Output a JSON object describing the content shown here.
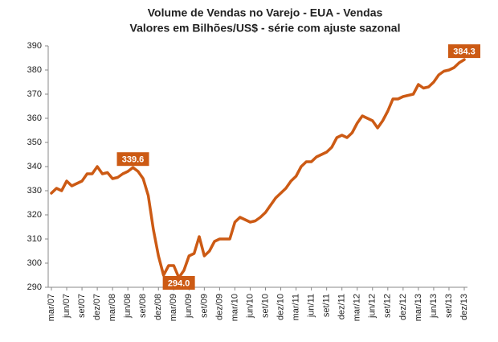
{
  "chart_data": {
    "type": "line",
    "title": "Volume de Vendas no Varejo - EUA - Vendas",
    "subtitle": "Valores em Bilhões/US$ - série com ajuste sazonal",
    "categories": [
      "mar/07",
      null,
      null,
      "jun/07",
      null,
      null,
      "set/07",
      null,
      null,
      "dez/07",
      null,
      null,
      "mar/08",
      null,
      null,
      "jun/08",
      null,
      null,
      "set/08",
      null,
      null,
      "dez/08",
      null,
      null,
      "mar/09",
      null,
      null,
      "jun/09",
      null,
      null,
      "set/09",
      null,
      null,
      "dez/09",
      null,
      null,
      "mar/10",
      null,
      null,
      "jun/10",
      null,
      null,
      "set/10",
      null,
      null,
      "dez/10",
      null,
      null,
      "mar/11",
      null,
      null,
      "jun/11",
      null,
      null,
      "set/11",
      null,
      null,
      "dez/11",
      null,
      null,
      "mar/12",
      null,
      null,
      "jun/12",
      null,
      null,
      "set/12",
      null,
      null,
      "dez/12",
      null,
      null,
      "mar/13",
      null,
      null,
      "jun/13",
      null,
      null,
      "set/13",
      null,
      null,
      "dez/13"
    ],
    "series": [
      {
        "name": "Vendas",
        "color": "#cc5a14",
        "values": [
          329,
          331,
          330,
          334,
          332,
          333,
          334,
          337,
          337,
          340,
          337,
          337.5,
          335,
          335.5,
          337,
          338,
          339.6,
          338,
          335,
          328,
          314,
          303,
          295,
          299,
          299,
          294.0,
          297,
          303,
          304,
          311,
          303,
          305,
          309,
          310,
          310,
          310,
          317,
          319,
          318,
          317,
          317.5,
          319,
          321,
          324,
          327,
          329,
          331,
          334,
          336,
          340,
          342,
          342,
          344,
          345,
          346,
          348,
          352,
          353,
          352,
          354,
          358,
          361,
          360,
          359,
          356,
          359,
          363,
          368,
          368,
          369,
          369.5,
          370,
          374,
          372.5,
          373,
          375,
          378,
          379.5,
          380,
          381,
          383,
          384.3
        ],
        "value_labels": [
          null,
          null,
          null,
          null,
          null,
          null,
          null,
          null,
          null,
          null,
          null,
          null,
          null,
          null,
          null,
          null,
          "339.6",
          null,
          null,
          null,
          null,
          null,
          null,
          null,
          null,
          "294.0",
          null,
          null,
          null,
          null,
          null,
          null,
          null,
          null,
          null,
          null,
          null,
          null,
          null,
          null,
          null,
          null,
          null,
          null,
          null,
          null,
          null,
          null,
          null,
          null,
          null,
          null,
          null,
          null,
          null,
          null,
          null,
          null,
          null,
          null,
          null,
          null,
          null,
          null,
          null,
          null,
          null,
          null,
          null,
          null,
          null,
          null,
          null,
          null,
          null,
          null,
          null,
          null,
          null,
          null,
          null,
          "384.3"
        ]
      }
    ],
    "ylim": [
      290,
      390
    ],
    "yticks": [
      290,
      300,
      310,
      320,
      330,
      340,
      350,
      360,
      370,
      380,
      390
    ],
    "grid": false
  }
}
